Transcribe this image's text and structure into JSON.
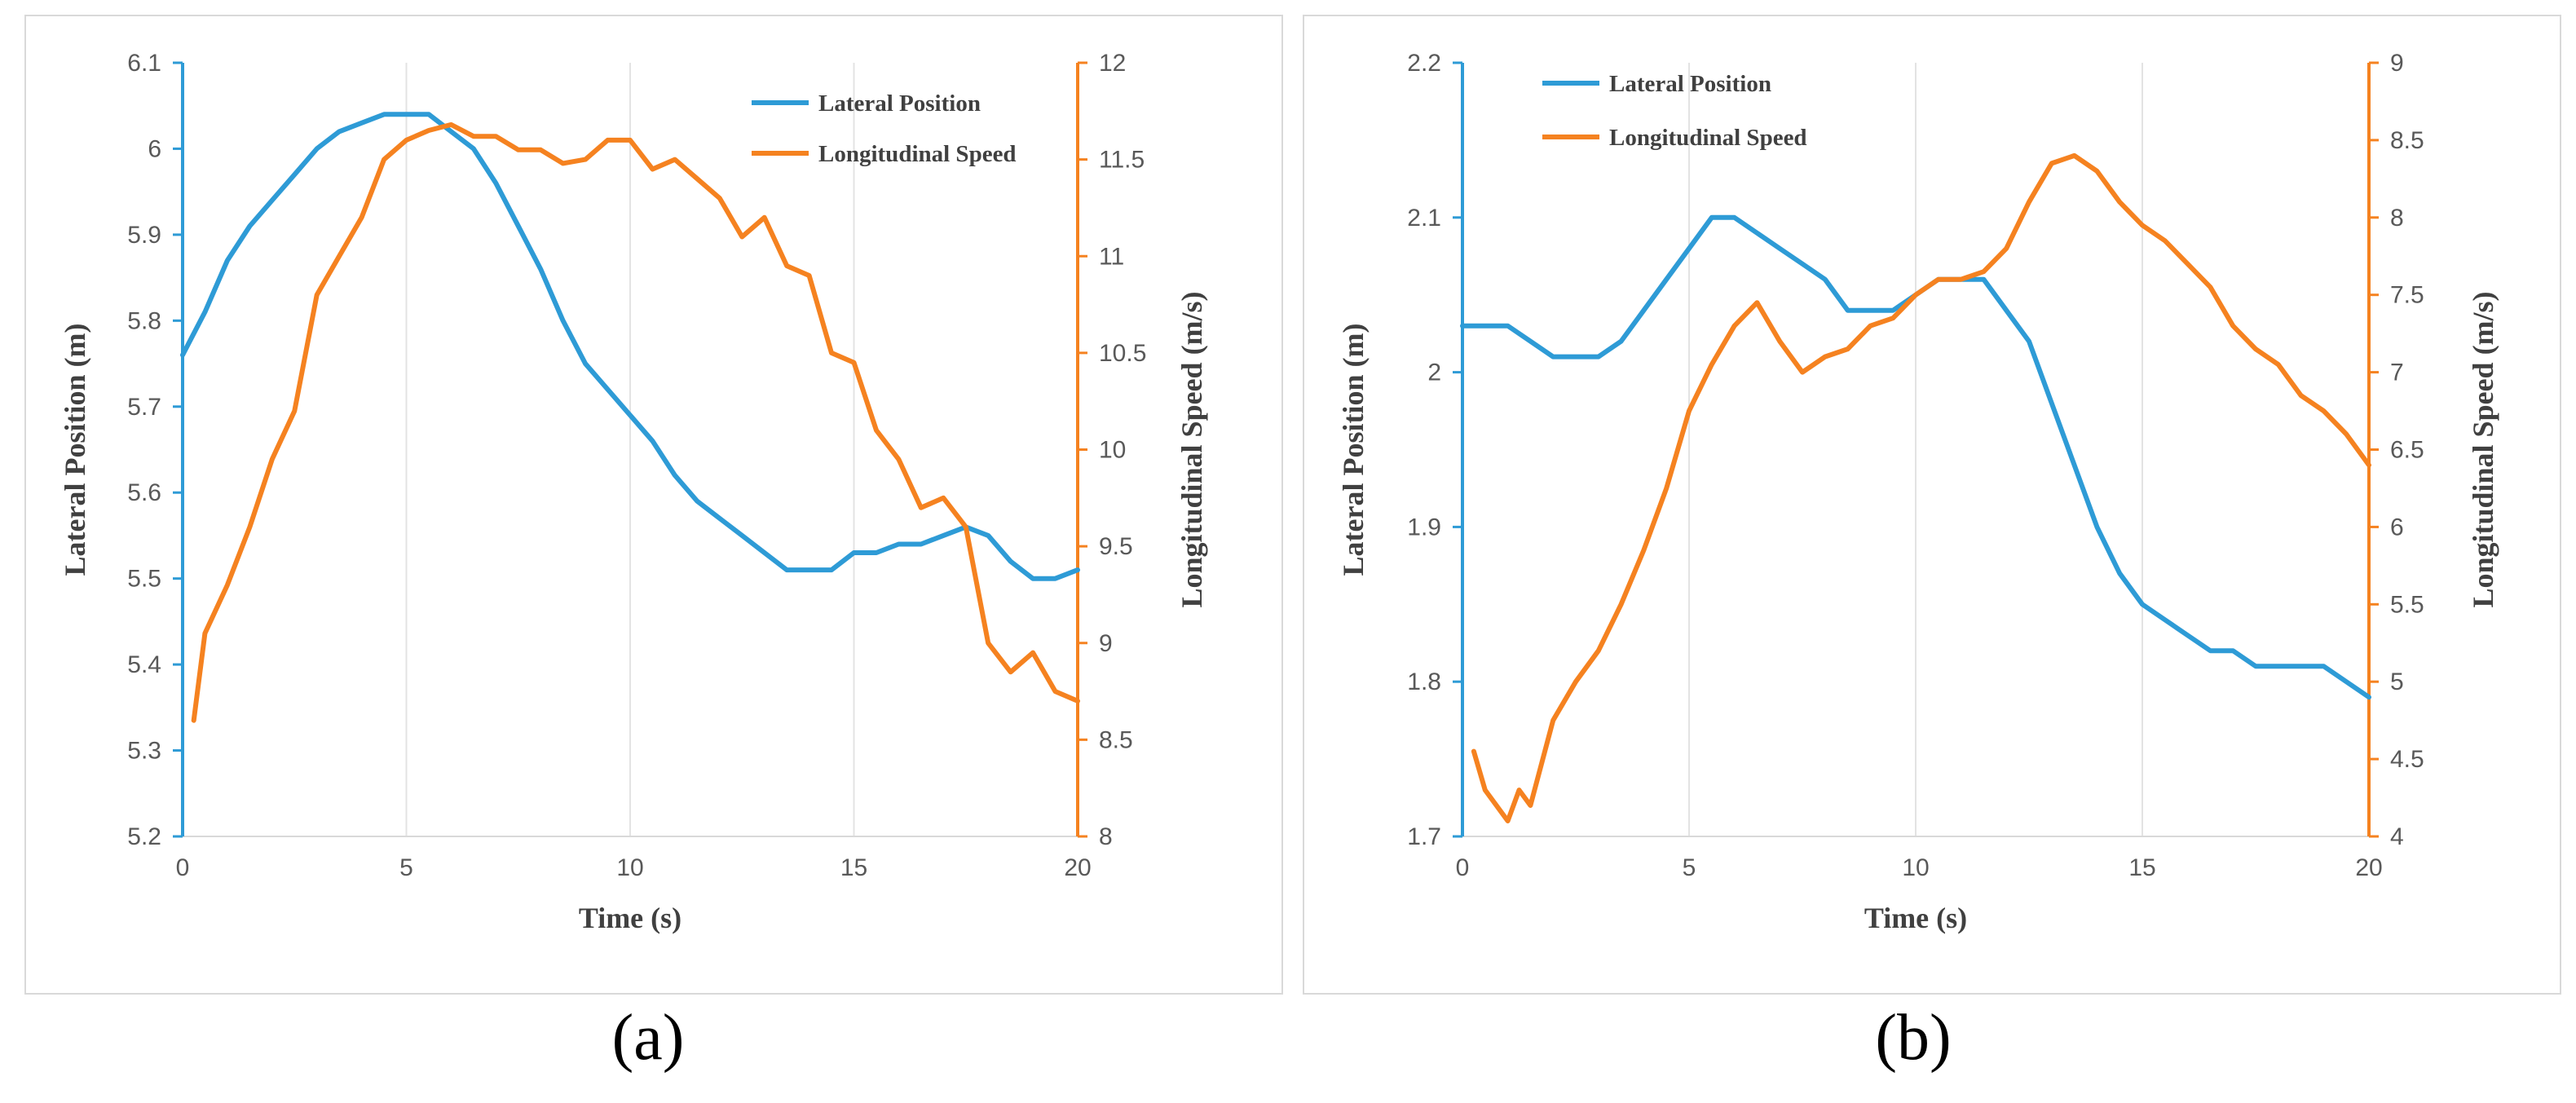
{
  "chart_data": [
    {
      "type": "line",
      "caption": "(a)",
      "xlabel": "Time (s)",
      "ylabel": "Lateral  Position (m)",
      "y2label": "Longitudinal  Speed (m/s)",
      "xlim": [
        0,
        20
      ],
      "ylim": [
        5.2,
        6.1
      ],
      "y2lim": [
        8,
        12
      ],
      "xticks": [
        "0",
        "5",
        "10",
        "15",
        "20"
      ],
      "xtick_values": [
        0,
        5,
        10,
        15,
        20
      ],
      "yticks": [
        "5.2",
        "5.3",
        "5.4",
        "5.5",
        "5.6",
        "5.7",
        "5.8",
        "5.9",
        "6",
        "6.1"
      ],
      "ytick_values": [
        5.2,
        5.3,
        5.4,
        5.5,
        5.6,
        5.7,
        5.8,
        5.9,
        6.0,
        6.1
      ],
      "y2ticks": [
        "8",
        "8.5",
        "9",
        "9.5",
        "10",
        "10.5",
        "11",
        "11.5",
        "12"
      ],
      "y2tick_values": [
        8,
        8.5,
        9,
        9.5,
        10,
        10.5,
        11,
        11.5,
        12
      ],
      "legend_position": "top-right",
      "grid": "vertical",
      "series": [
        {
          "name": "Lateral Position",
          "axis": "left",
          "color": "#2e9bd6",
          "x": [
            0,
            0.5,
            1,
            1.5,
            2,
            2.5,
            3,
            3.5,
            4,
            4.5,
            5,
            5.5,
            6,
            6.5,
            7,
            7.5,
            8,
            8.5,
            9,
            9.5,
            10,
            10.5,
            11,
            11.5,
            12,
            12.5,
            13,
            13.5,
            14,
            14.5,
            15,
            15.5,
            16,
            16.5,
            17,
            17.5,
            18,
            18.5,
            19,
            19.5,
            20
          ],
          "values": [
            5.76,
            5.81,
            5.87,
            5.91,
            5.94,
            5.97,
            6.0,
            6.02,
            6.03,
            6.04,
            6.04,
            6.04,
            6.02,
            6.0,
            5.96,
            5.91,
            5.86,
            5.8,
            5.75,
            5.72,
            5.69,
            5.66,
            5.62,
            5.59,
            5.57,
            5.55,
            5.53,
            5.51,
            5.51,
            5.51,
            5.53,
            5.53,
            5.54,
            5.54,
            5.55,
            5.56,
            5.55,
            5.52,
            5.5,
            5.5,
            5.51
          ]
        },
        {
          "name": "Longitudinal Speed",
          "axis": "right",
          "color": "#f58220",
          "x": [
            0.25,
            0.5,
            1,
            1.5,
            2,
            2.5,
            3,
            3.5,
            4,
            4.5,
            5,
            5.5,
            6,
            6.5,
            7,
            7.5,
            8,
            8.5,
            9,
            9.5,
            10,
            10.5,
            11,
            11.5,
            12,
            12.5,
            13,
            13.5,
            14,
            14.5,
            15,
            15.5,
            16,
            16.5,
            17,
            17.5,
            18,
            18.5,
            19,
            19.5,
            20
          ],
          "values": [
            8.6,
            9.05,
            9.3,
            9.6,
            9.95,
            10.2,
            10.8,
            11.0,
            11.2,
            11.5,
            11.6,
            11.65,
            11.68,
            11.62,
            11.62,
            11.55,
            11.55,
            11.48,
            11.5,
            11.6,
            11.6,
            11.45,
            11.5,
            11.4,
            11.3,
            11.1,
            11.2,
            10.95,
            10.9,
            10.5,
            10.45,
            10.1,
            9.95,
            9.7,
            9.75,
            9.6,
            9.0,
            8.85,
            8.95,
            8.75,
            8.7
          ]
        }
      ]
    },
    {
      "type": "line",
      "caption": "(b)",
      "xlabel": "Time (s)",
      "ylabel": "Lateral  Position (m)",
      "y2label": "Longitudinal  Speed (m/s)",
      "xlim": [
        0,
        20
      ],
      "ylim": [
        1.7,
        2.2
      ],
      "y2lim": [
        4,
        9
      ],
      "xticks": [
        "0",
        "5",
        "10",
        "15",
        "20"
      ],
      "xtick_values": [
        0,
        5,
        10,
        15,
        20
      ],
      "yticks": [
        "1.7",
        "1.8",
        "1.9",
        "2",
        "2.1",
        "2.2"
      ],
      "ytick_values": [
        1.7,
        1.8,
        1.9,
        2.0,
        2.1,
        2.2
      ],
      "y2ticks": [
        "4",
        "4.5",
        "5",
        "5.5",
        "6",
        "6.5",
        "7",
        "7.5",
        "8",
        "8.5",
        "9"
      ],
      "y2tick_values": [
        4,
        4.5,
        5,
        5.5,
        6,
        6.5,
        7,
        7.5,
        8,
        8.5,
        9
      ],
      "legend_position": "top-left",
      "grid": "vertical",
      "series": [
        {
          "name": "Lateral Position",
          "axis": "left",
          "color": "#2e9bd6",
          "x": [
            0,
            0.5,
            1,
            1.5,
            2,
            2.5,
            3,
            3.5,
            4,
            4.5,
            5,
            5.5,
            6,
            6.5,
            7,
            7.5,
            8,
            8.5,
            9,
            9.5,
            10,
            10.5,
            11,
            11.5,
            12,
            12.5,
            13,
            13.5,
            14,
            14.5,
            15,
            15.5,
            16,
            16.5,
            17,
            17.5,
            18,
            18.5,
            19,
            19.5,
            20
          ],
          "values": [
            2.03,
            2.03,
            2.03,
            2.02,
            2.01,
            2.01,
            2.01,
            2.02,
            2.04,
            2.06,
            2.08,
            2.1,
            2.1,
            2.09,
            2.08,
            2.07,
            2.06,
            2.04,
            2.04,
            2.04,
            2.05,
            2.06,
            2.06,
            2.06,
            2.04,
            2.02,
            1.98,
            1.94,
            1.9,
            1.87,
            1.85,
            1.84,
            1.83,
            1.82,
            1.82,
            1.81,
            1.81,
            1.81,
            1.81,
            1.8,
            1.79
          ]
        },
        {
          "name": "Longitudinal Speed",
          "axis": "right",
          "color": "#f58220",
          "x": [
            0.25,
            0.5,
            1,
            1.25,
            1.5,
            2,
            2.5,
            3,
            3.5,
            4,
            4.5,
            5,
            5.5,
            6,
            6.5,
            7,
            7.5,
            8,
            8.5,
            9,
            9.5,
            10,
            10.5,
            11,
            11.5,
            12,
            12.5,
            13,
            13.5,
            14,
            14.5,
            15,
            15.5,
            16,
            16.5,
            17,
            17.5,
            18,
            18.5,
            19,
            19.5,
            20
          ],
          "values": [
            4.55,
            4.3,
            4.1,
            4.3,
            4.2,
            4.75,
            5.0,
            5.2,
            5.5,
            5.85,
            6.25,
            6.75,
            7.05,
            7.3,
            7.45,
            7.2,
            7.0,
            7.1,
            7.15,
            7.3,
            7.35,
            7.5,
            7.6,
            7.6,
            7.65,
            7.8,
            8.1,
            8.35,
            8.4,
            8.3,
            8.1,
            7.95,
            7.85,
            7.7,
            7.55,
            7.3,
            7.15,
            7.05,
            6.85,
            6.75,
            6.6,
            6.4
          ]
        }
      ]
    }
  ]
}
